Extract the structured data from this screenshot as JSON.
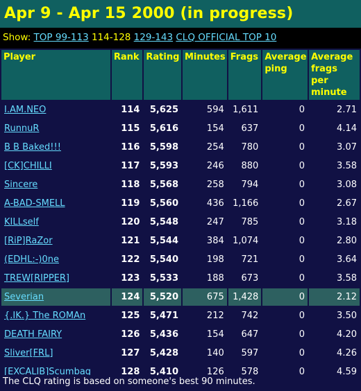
{
  "title": "Apr 9 - Apr 15 2000 (in progress)",
  "show": {
    "label": "Show:",
    "links": [
      "TOP 99-113",
      "114-128",
      "129-143",
      "CLQ OFFICIAL TOP 10"
    ],
    "current_index": 1
  },
  "headers": [
    "Player",
    "Rank",
    "Rating",
    "Minutes",
    "Frags",
    "Average ping",
    "Average frags per minute"
  ],
  "rows": [
    {
      "player": "I.AM.NEO",
      "rank": "114",
      "rating": "5,625",
      "minutes": "594",
      "frags": "1,611",
      "ping": "0",
      "fpm": "2.71"
    },
    {
      "player": "RunnuR",
      "rank": "115",
      "rating": "5,616",
      "minutes": "154",
      "frags": "637",
      "ping": "0",
      "fpm": "4.14"
    },
    {
      "player": "B B Baked!!!",
      "rank": "116",
      "rating": "5,598",
      "minutes": "254",
      "frags": "780",
      "ping": "0",
      "fpm": "3.07"
    },
    {
      "player": "[CK]CHILLI",
      "rank": "117",
      "rating": "5,593",
      "minutes": "246",
      "frags": "880",
      "ping": "0",
      "fpm": "3.58"
    },
    {
      "player": "Sincere",
      "rank": "118",
      "rating": "5,568",
      "minutes": "258",
      "frags": "794",
      "ping": "0",
      "fpm": "3.08"
    },
    {
      "player": "A-BAD-SMELL",
      "rank": "119",
      "rating": "5,560",
      "minutes": "436",
      "frags": "1,166",
      "ping": "0",
      "fpm": "2.67"
    },
    {
      "player": "KILLself",
      "rank": "120",
      "rating": "5,548",
      "minutes": "247",
      "frags": "785",
      "ping": "0",
      "fpm": "3.18"
    },
    {
      "player": "[RiP]RaZor",
      "rank": "121",
      "rating": "5,544",
      "minutes": "384",
      "frags": "1,074",
      "ping": "0",
      "fpm": "2.80"
    },
    {
      "player": "(EDHL:-)0ne",
      "rank": "122",
      "rating": "5,540",
      "minutes": "198",
      "frags": "721",
      "ping": "0",
      "fpm": "3.64"
    },
    {
      "player": "TREW[RIPPER]",
      "rank": "123",
      "rating": "5,533",
      "minutes": "188",
      "frags": "673",
      "ping": "0",
      "fpm": "3.58"
    },
    {
      "player": "Severian",
      "rank": "124",
      "rating": "5,520",
      "minutes": "675",
      "frags": "1,428",
      "ping": "0",
      "fpm": "2.12",
      "highlight": true
    },
    {
      "player": "{.IK.} The ROMAn",
      "rank": "125",
      "rating": "5,471",
      "minutes": "212",
      "frags": "742",
      "ping": "0",
      "fpm": "3.50"
    },
    {
      "player": "DEATH FAIRY",
      "rank": "126",
      "rating": "5,436",
      "minutes": "154",
      "frags": "647",
      "ping": "0",
      "fpm": "4.20"
    },
    {
      "player": "Sliver[FRL]",
      "rank": "127",
      "rating": "5,428",
      "minutes": "140",
      "frags": "597",
      "ping": "0",
      "fpm": "4.26"
    },
    {
      "player": "[EXCALIB]Scumbag",
      "rank": "128",
      "rating": "5,410",
      "minutes": "126",
      "frags": "578",
      "ping": "0",
      "fpm": "4.59"
    }
  ],
  "footer": "The CLQ rating is based on someone's best 90 minutes.",
  "colors": {
    "title_bg": "#106060",
    "title_text": "#ffff00",
    "body_bg": "#111144",
    "link": "#66ddff",
    "highlight_row": "#2d6060"
  }
}
